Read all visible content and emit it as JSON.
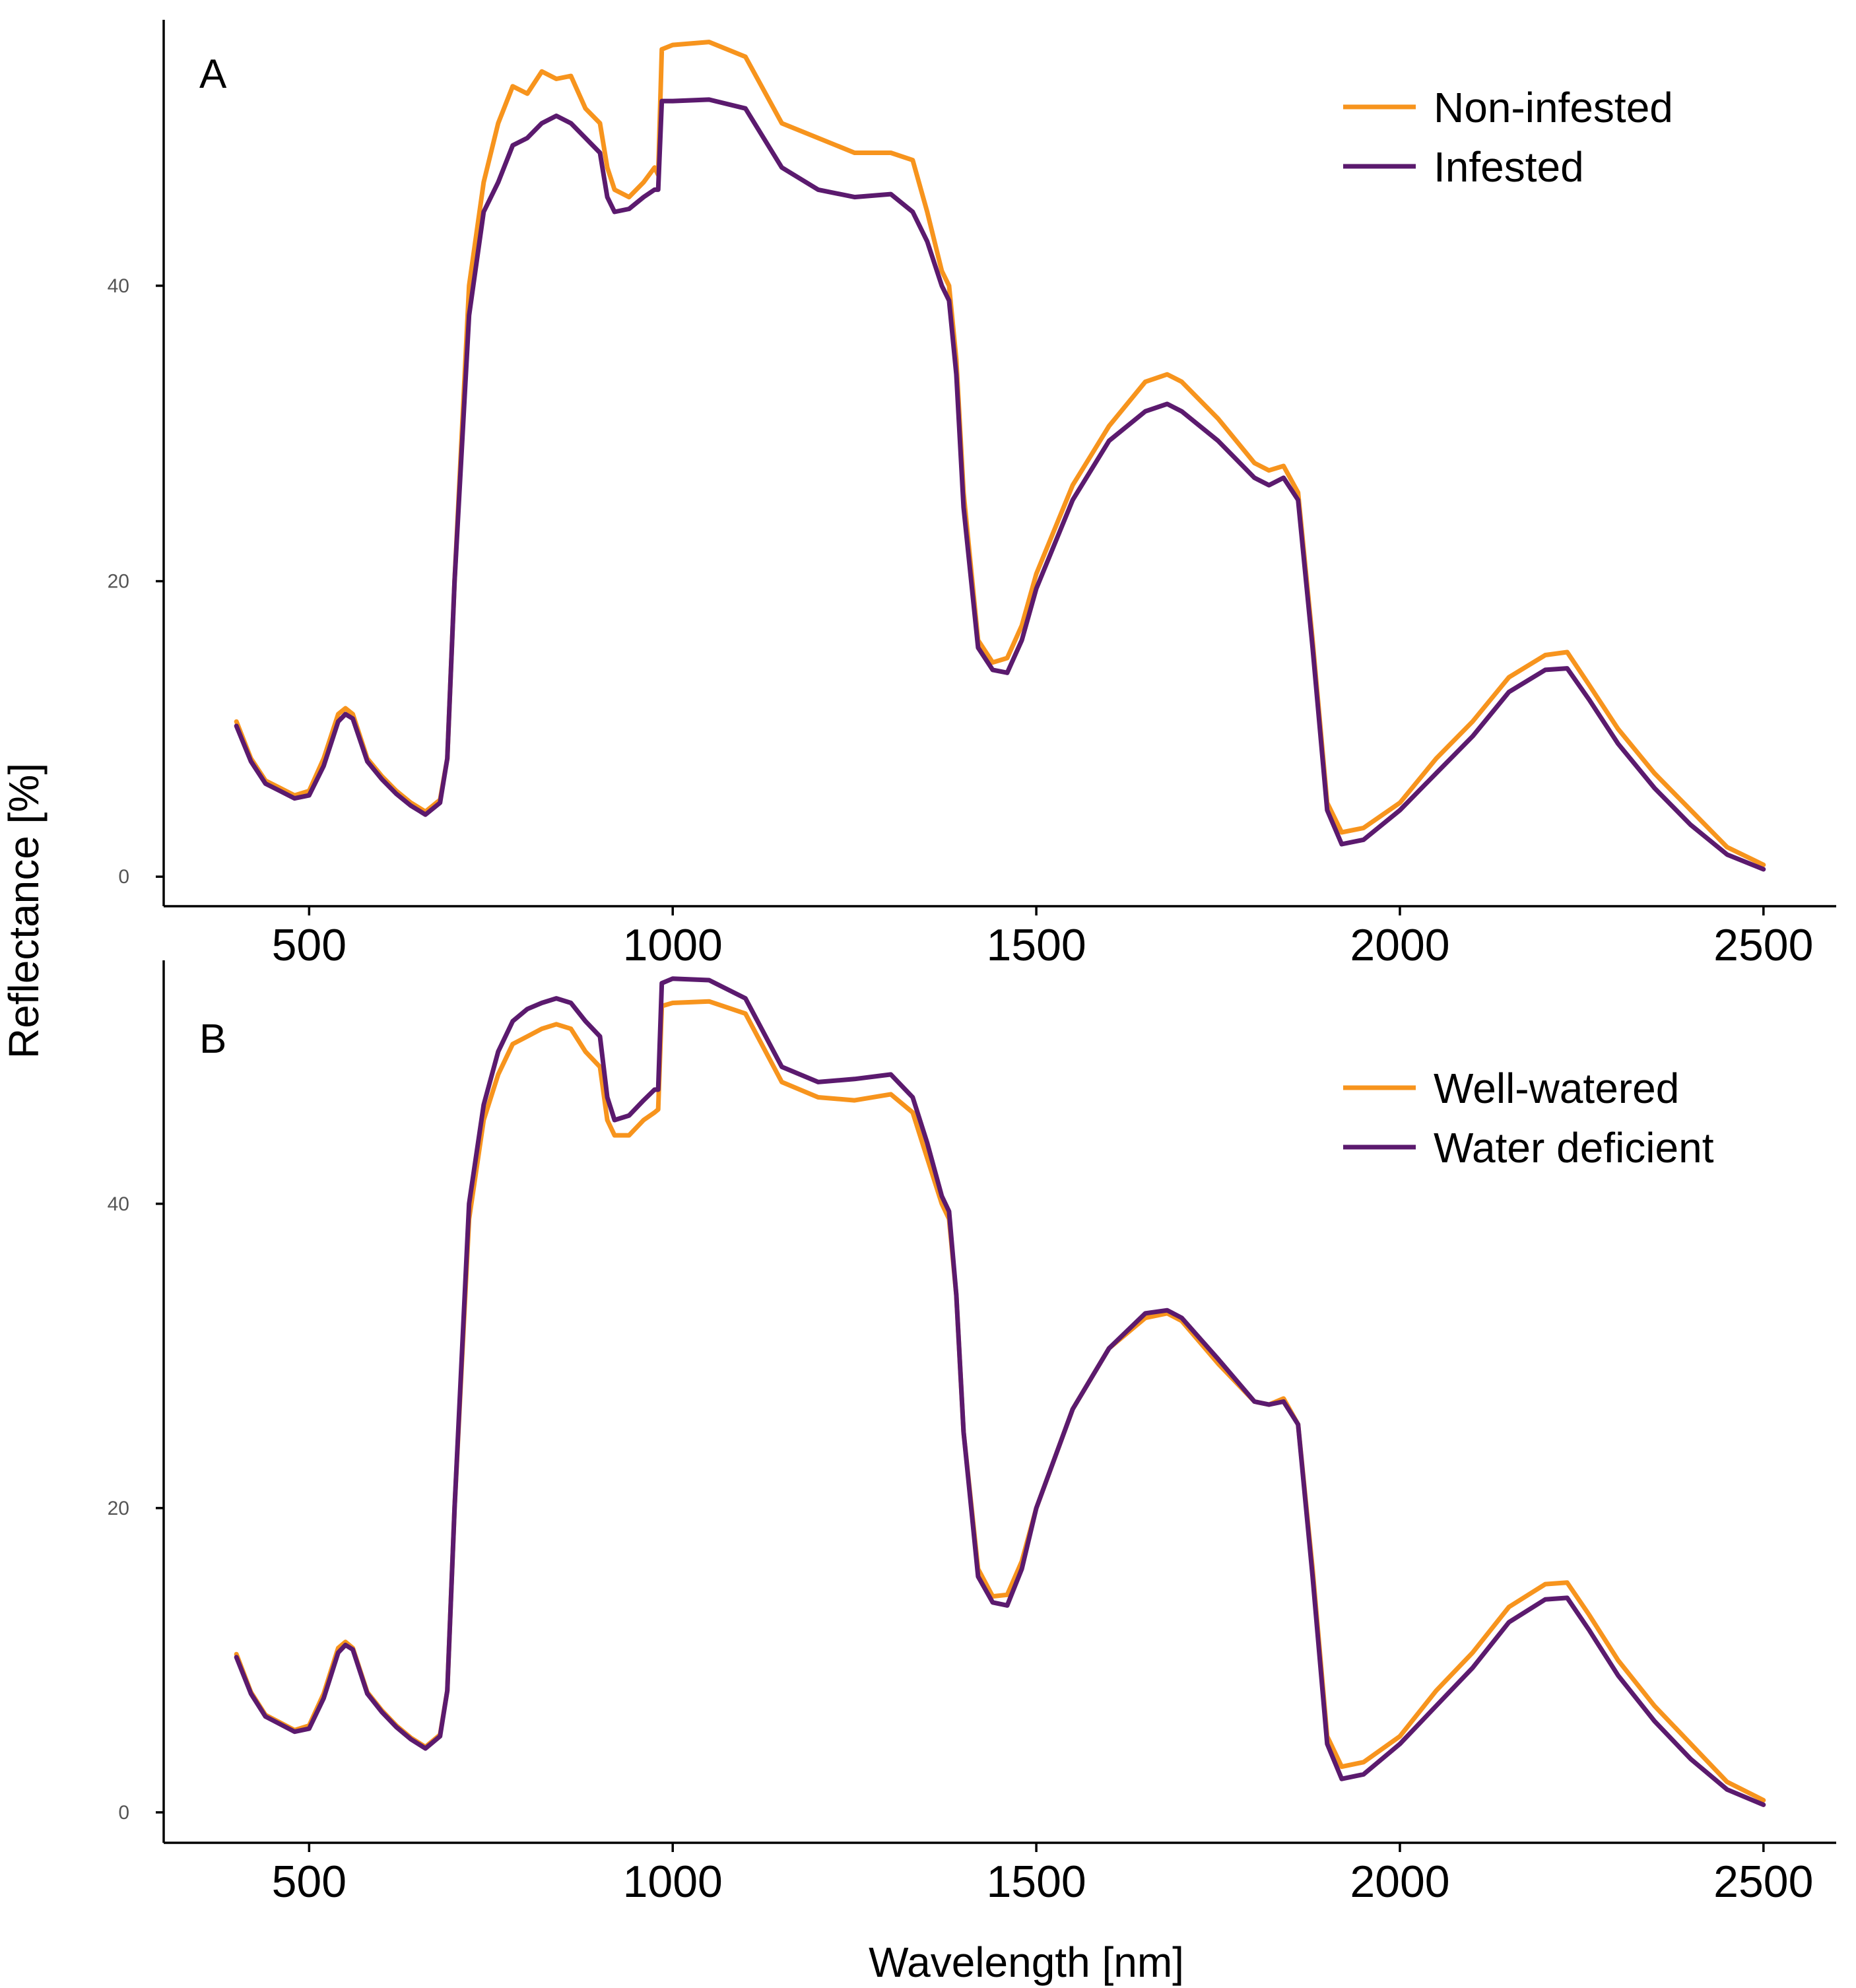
{
  "figure": {
    "y_axis_title": "Reflectance [%]",
    "x_axis_title": "Wavelength [nm]"
  },
  "chart_data": [
    {
      "type": "line",
      "panel_label": "A",
      "xlabel": "Wavelength [nm]",
      "ylabel": "Reflectance [%]",
      "xlim": [
        300,
        2600
      ],
      "ylim": [
        -2,
        58
      ],
      "x_ticks": [
        500,
        1000,
        1500,
        2000,
        2500
      ],
      "y_ticks": [
        0,
        20,
        40
      ],
      "grid": false,
      "legend_position": "top-right",
      "x": [
        400,
        420,
        440,
        460,
        480,
        500,
        520,
        540,
        550,
        560,
        580,
        600,
        620,
        640,
        660,
        680,
        690,
        700,
        720,
        740,
        760,
        780,
        800,
        820,
        840,
        860,
        880,
        900,
        910,
        920,
        940,
        960,
        975,
        980,
        985,
        1000,
        1050,
        1100,
        1150,
        1200,
        1250,
        1300,
        1330,
        1350,
        1370,
        1380,
        1390,
        1400,
        1420,
        1440,
        1460,
        1480,
        1500,
        1550,
        1600,
        1650,
        1680,
        1700,
        1750,
        1800,
        1820,
        1840,
        1860,
        1880,
        1900,
        1920,
        1950,
        2000,
        2050,
        2100,
        2150,
        2200,
        2230,
        2260,
        2300,
        2350,
        2400,
        2450,
        2500
      ],
      "series": [
        {
          "name": "Non-infested",
          "color": "#F7941D",
          "values": [
            10.5,
            8,
            6.5,
            6,
            5.5,
            5.8,
            8,
            11,
            11.4,
            11,
            8,
            6.8,
            5.8,
            5,
            4.4,
            5.2,
            8,
            20,
            40,
            47,
            51,
            53.5,
            53,
            54.5,
            54,
            54.2,
            52,
            51,
            48,
            46.5,
            46,
            47,
            48,
            47.5,
            56,
            56.3,
            56.5,
            55.5,
            51,
            50,
            49,
            49,
            48.5,
            45,
            41,
            40,
            35,
            26,
            16,
            14.5,
            14.8,
            17,
            20.5,
            26.5,
            30.5,
            33.5,
            34,
            33.5,
            31,
            28,
            27.5,
            27.8,
            26,
            16,
            5,
            3,
            3.3,
            5,
            8,
            10.5,
            13.5,
            15,
            15.2,
            13,
            10,
            7,
            4.5,
            2,
            0.8
          ]
        },
        {
          "name": "Infested",
          "color": "#5B1A6E",
          "values": [
            10.2,
            7.8,
            6.3,
            5.8,
            5.3,
            5.5,
            7.5,
            10.5,
            11,
            10.7,
            7.8,
            6.6,
            5.6,
            4.8,
            4.2,
            5,
            8,
            20,
            38,
            45,
            47,
            49.5,
            50,
            51,
            51.5,
            51,
            50,
            49,
            46,
            45,
            45.2,
            46,
            46.5,
            46.5,
            52.5,
            52.5,
            52.6,
            52,
            48,
            46.5,
            46,
            46.2,
            45,
            43,
            40,
            39,
            34,
            25,
            15.5,
            14,
            13.8,
            16,
            19.5,
            25.5,
            29.5,
            31.5,
            32,
            31.5,
            29.5,
            27,
            26.5,
            27,
            25.5,
            15.5,
            4.5,
            2.2,
            2.5,
            4.5,
            7,
            9.5,
            12.5,
            14,
            14.1,
            12,
            9,
            6,
            3.5,
            1.5,
            0.5
          ]
        }
      ]
    },
    {
      "type": "line",
      "panel_label": "B",
      "xlabel": "Wavelength [nm]",
      "ylabel": "Reflectance [%]",
      "xlim": [
        300,
        2600
      ],
      "ylim": [
        -2,
        56
      ],
      "x_ticks": [
        500,
        1000,
        1500,
        2000,
        2500
      ],
      "y_ticks": [
        0,
        20,
        40
      ],
      "grid": false,
      "legend_position": "top-right",
      "x": [
        400,
        420,
        440,
        460,
        480,
        500,
        520,
        540,
        550,
        560,
        580,
        600,
        620,
        640,
        660,
        680,
        690,
        700,
        720,
        740,
        760,
        780,
        800,
        820,
        840,
        860,
        880,
        900,
        910,
        920,
        940,
        960,
        975,
        980,
        985,
        1000,
        1050,
        1100,
        1150,
        1200,
        1250,
        1300,
        1330,
        1350,
        1370,
        1380,
        1390,
        1400,
        1420,
        1440,
        1460,
        1480,
        1500,
        1550,
        1600,
        1650,
        1680,
        1700,
        1750,
        1800,
        1820,
        1840,
        1860,
        1880,
        1900,
        1920,
        1950,
        2000,
        2050,
        2100,
        2150,
        2200,
        2230,
        2260,
        2300,
        2350,
        2400,
        2450,
        2500
      ],
      "series": [
        {
          "name": "Well-watered",
          "color": "#F7941D",
          "values": [
            10.4,
            7.9,
            6.4,
            5.9,
            5.4,
            5.7,
            7.8,
            10.8,
            11.2,
            10.8,
            7.9,
            6.7,
            5.7,
            4.9,
            4.3,
            5.1,
            8,
            20,
            39,
            45.5,
            48.5,
            50.5,
            51,
            51.5,
            51.8,
            51.5,
            50,
            49,
            45.5,
            44.5,
            44.5,
            45.5,
            46,
            46.2,
            53,
            53.2,
            53.3,
            52.5,
            48,
            47,
            46.8,
            47.2,
            46,
            43,
            40,
            39,
            34,
            25,
            16,
            14.2,
            14.3,
            16.5,
            20,
            26.5,
            30.5,
            32.5,
            32.8,
            32.3,
            29.5,
            27,
            26.8,
            27.2,
            25.5,
            16,
            5,
            3,
            3.3,
            5,
            8,
            10.5,
            13.5,
            15,
            15.1,
            13,
            10,
            7,
            4.5,
            2,
            0.8
          ]
        },
        {
          "name": "Water deficient",
          "color": "#5B1A6E",
          "values": [
            10.2,
            7.8,
            6.3,
            5.8,
            5.3,
            5.5,
            7.5,
            10.5,
            11,
            10.7,
            7.8,
            6.6,
            5.6,
            4.8,
            4.2,
            5,
            8,
            20,
            40,
            46.5,
            50,
            52,
            52.8,
            53.2,
            53.5,
            53.2,
            52,
            51,
            47,
            45.5,
            45.8,
            46.8,
            47.5,
            47.5,
            54.5,
            54.8,
            54.7,
            53.5,
            49,
            48,
            48.2,
            48.5,
            47,
            44,
            40.5,
            39.5,
            34,
            25,
            15.5,
            13.8,
            13.6,
            16,
            20,
            26.5,
            30.5,
            32.8,
            33,
            32.5,
            29.8,
            27,
            26.8,
            27,
            25.5,
            15.5,
            4.5,
            2.2,
            2.5,
            4.5,
            7,
            9.5,
            12.5,
            14,
            14.1,
            12,
            9,
            6,
            3.5,
            1.5,
            0.5
          ]
        }
      ]
    }
  ]
}
